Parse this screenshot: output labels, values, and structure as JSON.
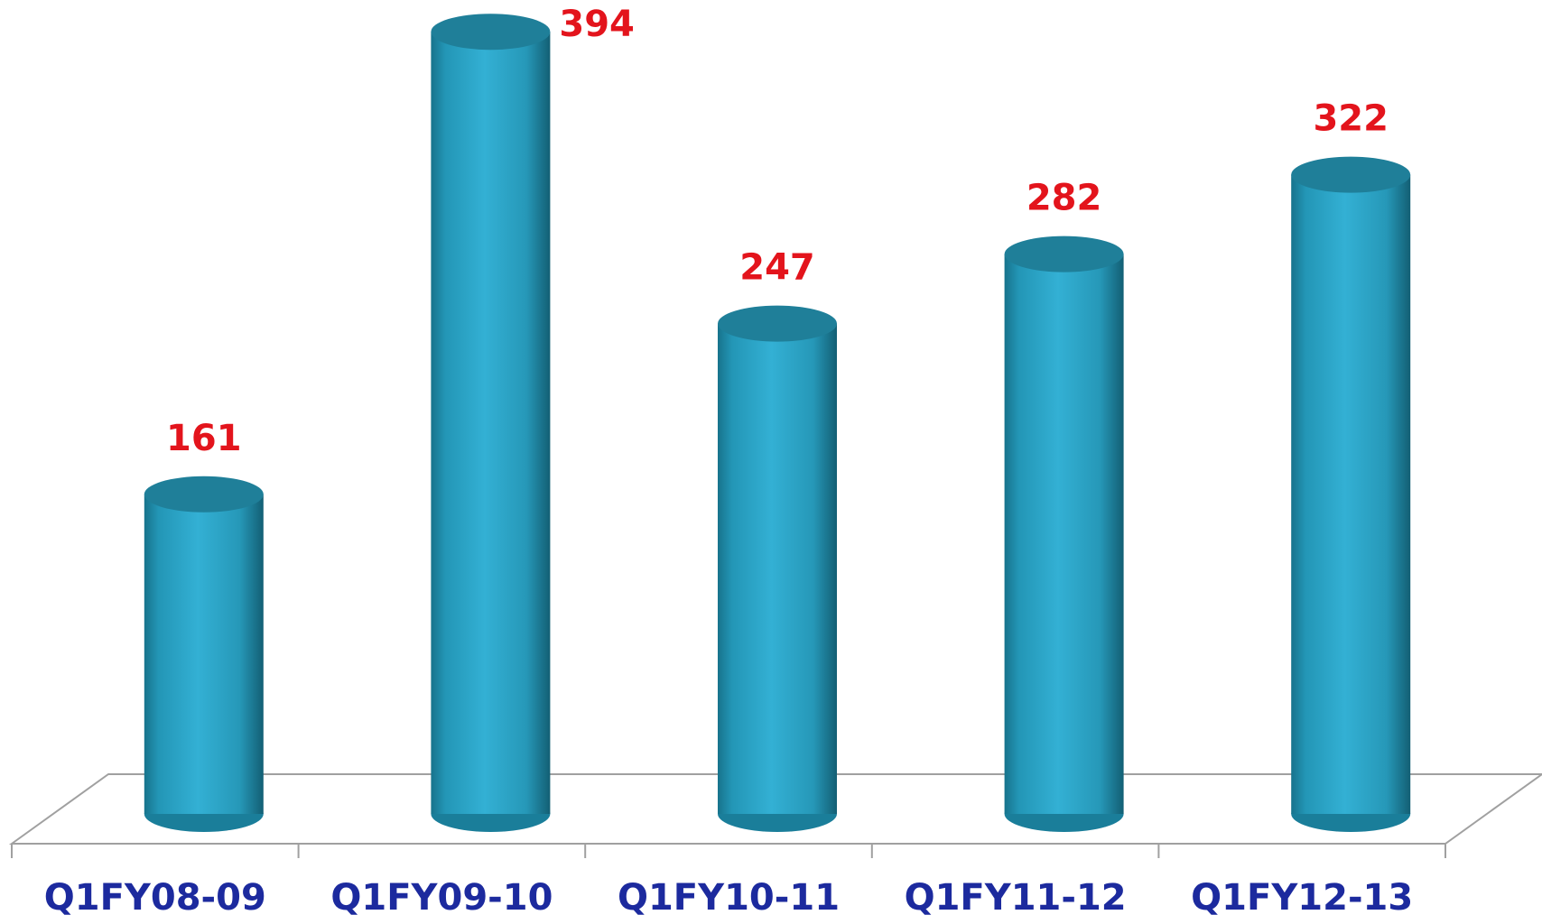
{
  "chart_data": {
    "type": "bar",
    "categories": [
      "Q1FY08-09",
      "Q1FY09-10",
      "Q1FY10-11",
      "Q1FY11-12",
      "Q1FY12-13"
    ],
    "values": [
      161,
      394,
      247,
      282,
      322
    ],
    "color": "#2aa7ca"
  }
}
